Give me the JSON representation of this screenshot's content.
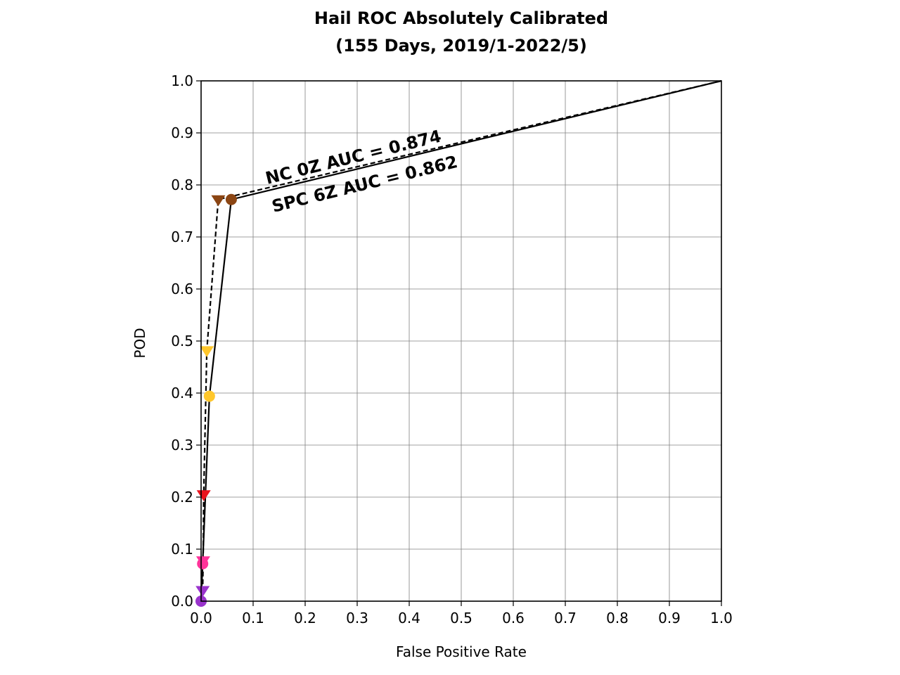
{
  "chart_data": {
    "type": "line",
    "title_line1": "Hail ROC Absolutely Calibrated",
    "title_line2": "(155 Days, 2019/1-2022/5)",
    "xlabel": "False Positive Rate",
    "ylabel": "POD",
    "xlim": [
      0.0,
      1.0
    ],
    "ylim": [
      0.0,
      1.0
    ],
    "xticks": [
      "0.0",
      "0.1",
      "0.2",
      "0.3",
      "0.4",
      "0.5",
      "0.6",
      "0.7",
      "0.8",
      "0.9",
      "1.0"
    ],
    "yticks": [
      "0.0",
      "0.1",
      "0.2",
      "0.3",
      "0.4",
      "0.5",
      "0.6",
      "0.7",
      "0.8",
      "0.9",
      "1.0"
    ],
    "grid": true,
    "series": [
      {
        "label": "NC 0Z AUC = 0.874",
        "linestyle": "solid",
        "marker": "circle",
        "points": [
          {
            "x": 1.0,
            "y": 1.0,
            "color": null
          },
          {
            "x": 0.058,
            "y": 0.772,
            "color": "#8B4513"
          },
          {
            "x": 0.016,
            "y": 0.394,
            "color": "#FFC72C"
          },
          {
            "x": 0.003,
            "y": 0.072,
            "color": "#FF3399"
          },
          {
            "x": 0.0,
            "y": 0.0,
            "color": "#9933CC"
          }
        ]
      },
      {
        "label": "SPC 6Z AUC = 0.862",
        "linestyle": "dashed",
        "marker": "triangle-down",
        "points": [
          {
            "x": 1.0,
            "y": 1.0,
            "color": null
          },
          {
            "x": 0.033,
            "y": 0.772,
            "color": "#8B4513"
          },
          {
            "x": 0.011,
            "y": 0.482,
            "color": "#FFC72C"
          },
          {
            "x": 0.005,
            "y": 0.205,
            "color": "#E8141E"
          },
          {
            "x": 0.004,
            "y": 0.078,
            "color": "#FF3399"
          },
          {
            "x": 0.003,
            "y": 0.021,
            "color": "#9933CC"
          },
          {
            "x": 0.0,
            "y": 0.0,
            "color": null
          }
        ]
      }
    ]
  }
}
